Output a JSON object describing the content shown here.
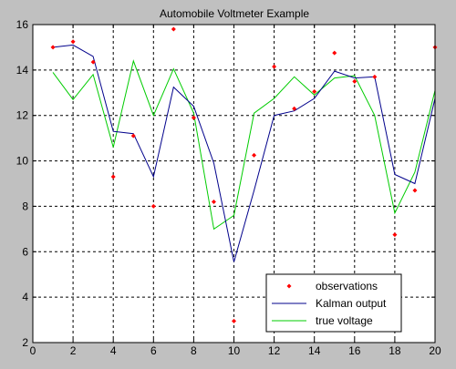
{
  "chart_data": {
    "type": "line",
    "title": "Automobile Voltmeter Example",
    "xlabel": "",
    "ylabel": "",
    "xlim": [
      0,
      20
    ],
    "ylim": [
      2,
      16
    ],
    "xticks": [
      0,
      2,
      4,
      6,
      8,
      10,
      12,
      14,
      16,
      18,
      20
    ],
    "yticks": [
      2,
      4,
      6,
      8,
      10,
      12,
      14,
      16
    ],
    "grid": true,
    "legend_position": "bottom-right",
    "series": [
      {
        "name": "observations",
        "style": "points",
        "color": "#ff0000",
        "x": [
          1,
          2,
          3,
          4,
          5,
          6,
          7,
          8,
          9,
          10,
          11,
          12,
          13,
          14,
          15,
          16,
          17,
          18,
          19,
          20
        ],
        "y": [
          15.0,
          15.25,
          14.35,
          9.3,
          11.1,
          8.0,
          15.8,
          11.9,
          8.2,
          2.95,
          10.25,
          14.15,
          12.3,
          13.05,
          14.75,
          13.5,
          13.7,
          6.75,
          8.7,
          15.0
        ]
      },
      {
        "name": "Kalman output",
        "style": "line",
        "color": "#00008b",
        "x": [
          1,
          2,
          3,
          4,
          5,
          6,
          7,
          8,
          9,
          10,
          11,
          12,
          13,
          14,
          15,
          16,
          17,
          18,
          19,
          20
        ],
        "y": [
          15.0,
          15.1,
          14.6,
          11.3,
          11.2,
          9.3,
          13.25,
          12.4,
          9.9,
          5.55,
          8.7,
          12.0,
          12.2,
          12.75,
          13.95,
          13.65,
          13.7,
          9.4,
          9.0,
          12.75
        ]
      },
      {
        "name": "true voltage",
        "style": "line",
        "color": "#00cc00",
        "x": [
          1,
          2,
          3,
          4,
          5,
          6,
          7,
          8,
          9,
          10,
          11,
          12,
          13,
          14,
          15,
          16,
          17,
          18,
          19,
          20
        ],
        "y": [
          13.9,
          12.7,
          13.8,
          10.6,
          14.4,
          12.0,
          14.05,
          12.1,
          7.0,
          7.6,
          12.1,
          12.75,
          13.7,
          12.9,
          13.65,
          13.75,
          12.0,
          7.7,
          9.5,
          13.1
        ]
      }
    ]
  }
}
